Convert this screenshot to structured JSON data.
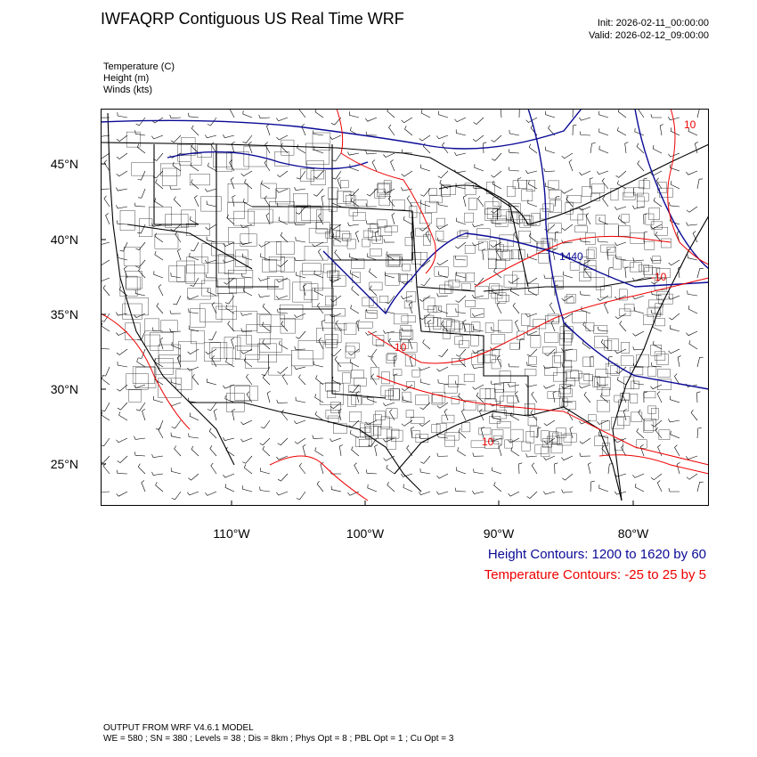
{
  "header": {
    "title": "IWFAQRP Contiguous US Real Time WRF",
    "init": "Init: 2026-02-11_00:00:00",
    "valid": "Valid: 2026-02-12_09:00:00"
  },
  "fields": [
    "Temperature   (C)",
    "Height   (m)",
    "Winds   (kts)"
  ],
  "axes": {
    "lat_labels": [
      "45°N",
      "40°N",
      "35°N",
      "30°N",
      "25°N"
    ],
    "lon_labels": [
      "110°W",
      "100°W",
      "90°W",
      "80°W"
    ]
  },
  "contour_labels": {
    "temperature": [
      "-10",
      "10",
      "10",
      "10"
    ],
    "height": [
      "1440"
    ]
  },
  "legend": {
    "height": "Height Contours: 1200 to 1620 by 60",
    "temperature": "Temperature Contours: -25 to 25 by 5"
  },
  "footer": {
    "line1": "OUTPUT FROM WRF V4.6.1 MODEL",
    "line2": "WE = 580 ; SN = 380 ; Levels = 38 ; Dis = 8km ; Phys Opt = 8 ; PBL Opt = 1 ; Cu Opt = 3"
  },
  "colors": {
    "height": "#0a0a96",
    "temperature": "#ee0000",
    "borders": "#000000"
  }
}
